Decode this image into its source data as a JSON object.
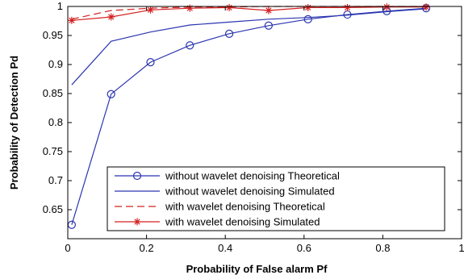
{
  "chart_data": {
    "type": "line",
    "xlabel": "Probability of False alarm Pf",
    "ylabel": "Probability of Detection Pd",
    "xlim": [
      0,
      1
    ],
    "ylim": [
      0.6,
      1
    ],
    "xticks": [
      0,
      0.2,
      0.4,
      0.6,
      0.8,
      1
    ],
    "xtick_labels": [
      "0",
      "0.2",
      "0.4",
      "0.6",
      "0.8",
      "1"
    ],
    "yticks": [
      0.65,
      0.7,
      0.75,
      0.8,
      0.85,
      0.9,
      0.95,
      1
    ],
    "ytick_labels": [
      "0.65",
      "0.7",
      "0.75",
      "0.8",
      "0.85",
      "0.9",
      "0.95",
      "1"
    ],
    "grid": false,
    "legend_position": "bottom-center",
    "series": [
      {
        "name": "without wavelet denoising Theoretical",
        "color": "#2b35b0",
        "style": "solid",
        "marker": "circle",
        "x": [
          0.01,
          0.11,
          0.21,
          0.31,
          0.41,
          0.51,
          0.61,
          0.71,
          0.81,
          0.91
        ],
        "y": [
          0.624,
          0.849,
          0.904,
          0.933,
          0.953,
          0.967,
          0.978,
          0.986,
          0.992,
          0.997
        ]
      },
      {
        "name": "without wavelet denoising Simulated",
        "color": "#2b35b0",
        "style": "solid",
        "marker": "none",
        "x": [
          0.01,
          0.11,
          0.21,
          0.31,
          0.41,
          0.51,
          0.61,
          0.71,
          0.81,
          0.91
        ],
        "y": [
          0.865,
          0.94,
          0.956,
          0.968,
          0.973,
          0.978,
          0.981,
          0.985,
          0.991,
          0.996
        ]
      },
      {
        "name": "with wavelet denoising Theoretical",
        "color": "#d42020",
        "style": "dashed",
        "marker": "none",
        "x": [
          0.01,
          0.11,
          0.21,
          0.31,
          0.41,
          0.51,
          0.61,
          0.71,
          0.81,
          0.91
        ],
        "y": [
          0.978,
          0.993,
          0.997,
          0.999,
          0.999,
          1.0,
          1.0,
          1.0,
          1.0,
          1.0
        ]
      },
      {
        "name": "with wavelet denoising Simulated",
        "color": "#d42020",
        "style": "solid",
        "marker": "star",
        "x": [
          0.01,
          0.11,
          0.21,
          0.31,
          0.41,
          0.51,
          0.61,
          0.71,
          0.81,
          0.91
        ],
        "y": [
          0.976,
          0.982,
          0.994,
          0.997,
          0.998,
          0.993,
          0.998,
          0.998,
          0.999,
          0.999
        ]
      }
    ]
  }
}
